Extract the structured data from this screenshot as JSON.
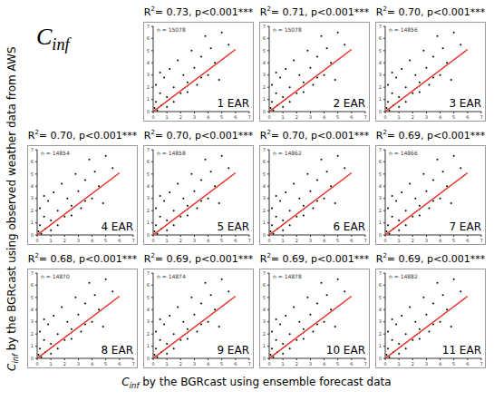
{
  "title": {
    "main": "C",
    "sub": "inf"
  },
  "x_label": {
    "main": "C",
    "sub": "inf",
    "rest": " by the BGRcast using ensemble forecast data"
  },
  "y_label": {
    "main": "C",
    "sub": "inf",
    "rest": " by the BGRcast using observed weather data from AWS"
  },
  "chart_data": [
    {
      "type": "scatter",
      "title": "1 EAR",
      "annotation": {
        "prefix": "R",
        "sup": "2",
        "text": "= 0.73,  p<0.001***"
      },
      "n_label": "n = 15078",
      "xlim": [
        0,
        7
      ],
      "ylim": [
        0,
        7
      ],
      "xticks": [
        0,
        1,
        2,
        3,
        4,
        5,
        6,
        7
      ],
      "yticks": [
        0,
        1,
        2,
        3,
        4,
        5,
        6,
        7
      ],
      "marker": "dot",
      "color": "#000000",
      "x": [
        0.1,
        0.2,
        0.3,
        0.5,
        0.2,
        0.6,
        0.8,
        1.0,
        1.2,
        1.0,
        1.5,
        1.8,
        2.0,
        2.2,
        2.5,
        2.8,
        3.0,
        3.2,
        3.5,
        3.8,
        4.0,
        4.2,
        4.5,
        5.0,
        5.5,
        1.5,
        2.5,
        3.5,
        0.5,
        4.8
      ],
      "values": [
        0.3,
        0.8,
        0.1,
        1.5,
        2.2,
        0.5,
        2.8,
        1.2,
        3.5,
        0.4,
        2.0,
        4.2,
        1.5,
        3.0,
        2.4,
        5.0,
        3.6,
        2.2,
        4.5,
        6.2,
        3.0,
        5.2,
        4.0,
        6.5,
        5.5,
        0.8,
        1.6,
        2.8,
        3.2,
        2.6
      ],
      "fit_line": {
        "x": [
          0,
          6
        ],
        "values": [
          0,
          5.1
        ],
        "color": "#e8302a"
      }
    },
    {
      "type": "scatter",
      "title": "2 EAR",
      "annotation": {
        "prefix": "R",
        "sup": "2",
        "text": "= 0.71,  p<0.001***"
      },
      "n_label": "n = 15078",
      "xlim": [
        0,
        7
      ],
      "ylim": [
        0,
        7
      ],
      "xticks": [
        0,
        1,
        2,
        3,
        4,
        5,
        6,
        7
      ],
      "yticks": [
        0,
        1,
        2,
        3,
        4,
        5,
        6,
        7
      ],
      "marker": "dot",
      "color": "#000000",
      "x": [
        0.1,
        0.2,
        0.3,
        0.5,
        0.2,
        0.6,
        0.8,
        1.0,
        1.2,
        1.0,
        1.5,
        1.8,
        2.0,
        2.2,
        2.5,
        2.8,
        3.0,
        3.2,
        3.5,
        3.8,
        4.0,
        4.2,
        4.5,
        5.0,
        5.5,
        1.5,
        2.5,
        3.5,
        0.5,
        4.8
      ],
      "values": [
        0.3,
        0.8,
        0.1,
        1.5,
        2.2,
        0.5,
        2.8,
        1.2,
        3.5,
        0.4,
        2.0,
        4.2,
        1.5,
        3.0,
        2.4,
        5.0,
        3.6,
        2.2,
        4.5,
        6.2,
        3.0,
        5.2,
        4.0,
        6.5,
        5.5,
        0.8,
        1.6,
        2.8,
        3.2,
        2.6
      ],
      "fit_line": {
        "x": [
          0,
          6
        ],
        "values": [
          0,
          5.1
        ],
        "color": "#e8302a"
      }
    },
    {
      "type": "scatter",
      "title": "3 EAR",
      "annotation": {
        "prefix": "R",
        "sup": "2",
        "text": "= 0.70,  p<0.001***"
      },
      "n_label": "n = 14856",
      "xlim": [
        0,
        7
      ],
      "ylim": [
        0,
        7
      ],
      "xticks": [
        0,
        1,
        2,
        3,
        4,
        5,
        6,
        7
      ],
      "yticks": [
        0,
        1,
        2,
        3,
        4,
        5,
        6,
        7
      ],
      "marker": "dot",
      "color": "#000000",
      "x": [
        0.1,
        0.2,
        0.3,
        0.5,
        0.2,
        0.6,
        0.8,
        1.0,
        1.2,
        1.0,
        1.5,
        1.8,
        2.0,
        2.2,
        2.5,
        2.8,
        3.0,
        3.2,
        3.5,
        3.8,
        4.0,
        4.2,
        4.5,
        5.0,
        5.5,
        1.5,
        2.5,
        3.5,
        0.5,
        4.8
      ],
      "values": [
        0.3,
        0.8,
        0.1,
        1.5,
        2.2,
        0.5,
        2.8,
        1.2,
        3.5,
        0.4,
        2.0,
        4.2,
        1.5,
        3.0,
        2.4,
        5.0,
        3.6,
        2.2,
        4.5,
        6.2,
        3.0,
        5.2,
        4.0,
        6.5,
        5.5,
        0.8,
        1.6,
        2.8,
        3.2,
        2.6
      ],
      "fit_line": {
        "x": [
          0,
          6
        ],
        "values": [
          0,
          5.1
        ],
        "color": "#e8302a"
      }
    },
    {
      "type": "scatter",
      "title": "4 EAR",
      "annotation": {
        "prefix": "R",
        "sup": "2",
        "text": "= 0.70,  p<0.001***"
      },
      "n_label": "n = 14854",
      "xlim": [
        0,
        7
      ],
      "ylim": [
        0,
        7
      ],
      "xticks": [
        0,
        1,
        2,
        3,
        4,
        5,
        6,
        7
      ],
      "yticks": [
        0,
        1,
        2,
        3,
        4,
        5,
        6,
        7
      ],
      "marker": "dot",
      "color": "#000000",
      "x": [
        0.1,
        0.2,
        0.3,
        0.5,
        0.2,
        0.6,
        0.8,
        1.0,
        1.2,
        1.0,
        1.5,
        1.8,
        2.0,
        2.2,
        2.5,
        2.8,
        3.0,
        3.2,
        3.5,
        3.8,
        4.0,
        4.2,
        4.5,
        5.0,
        5.5,
        1.5,
        2.5,
        3.5,
        0.5,
        4.8
      ],
      "values": [
        0.3,
        0.8,
        0.1,
        1.5,
        2.2,
        0.5,
        2.8,
        1.2,
        3.5,
        0.4,
        2.0,
        4.2,
        1.5,
        3.0,
        2.4,
        5.0,
        3.6,
        2.2,
        4.5,
        6.2,
        3.0,
        5.2,
        4.0,
        6.5,
        5.5,
        0.8,
        1.6,
        2.8,
        3.2,
        2.6
      ],
      "fit_line": {
        "x": [
          0,
          6
        ],
        "values": [
          0,
          5.1
        ],
        "color": "#e8302a"
      }
    },
    {
      "type": "scatter",
      "title": "5 EAR",
      "annotation": {
        "prefix": "R",
        "sup": "2",
        "text": "= 0.70,  p<0.001***"
      },
      "n_label": "n = 14858",
      "xlim": [
        0,
        7
      ],
      "ylim": [
        0,
        7
      ],
      "xticks": [
        0,
        1,
        2,
        3,
        4,
        5,
        6,
        7
      ],
      "yticks": [
        0,
        1,
        2,
        3,
        4,
        5,
        6,
        7
      ],
      "marker": "dot",
      "color": "#000000",
      "x": [
        0.1,
        0.2,
        0.3,
        0.5,
        0.2,
        0.6,
        0.8,
        1.0,
        1.2,
        1.0,
        1.5,
        1.8,
        2.0,
        2.2,
        2.5,
        2.8,
        3.0,
        3.2,
        3.5,
        3.8,
        4.0,
        4.2,
        4.5,
        5.0,
        5.5,
        1.5,
        2.5,
        3.5,
        0.5,
        4.8
      ],
      "values": [
        0.3,
        0.8,
        0.1,
        1.5,
        2.2,
        0.5,
        2.8,
        1.2,
        3.5,
        0.4,
        2.0,
        4.2,
        1.5,
        3.0,
        2.4,
        5.0,
        3.6,
        2.2,
        4.5,
        6.2,
        3.0,
        5.2,
        4.0,
        6.5,
        5.5,
        0.8,
        1.6,
        2.8,
        3.2,
        2.6
      ],
      "fit_line": {
        "x": [
          0,
          6
        ],
        "values": [
          0,
          5.1
        ],
        "color": "#e8302a"
      }
    },
    {
      "type": "scatter",
      "title": "6 EAR",
      "annotation": {
        "prefix": "R",
        "sup": "2",
        "text": "= 0.70,  p<0.001***"
      },
      "n_label": "n = 14862",
      "xlim": [
        0,
        7
      ],
      "ylim": [
        0,
        7
      ],
      "xticks": [
        0,
        1,
        2,
        3,
        4,
        5,
        6,
        7
      ],
      "yticks": [
        0,
        1,
        2,
        3,
        4,
        5,
        6,
        7
      ],
      "marker": "dot",
      "color": "#000000",
      "x": [
        0.1,
        0.2,
        0.3,
        0.5,
        0.2,
        0.6,
        0.8,
        1.0,
        1.2,
        1.0,
        1.5,
        1.8,
        2.0,
        2.2,
        2.5,
        2.8,
        3.0,
        3.2,
        3.5,
        3.8,
        4.0,
        4.2,
        4.5,
        5.0,
        5.5,
        1.5,
        2.5,
        3.5,
        0.5,
        4.8
      ],
      "values": [
        0.3,
        0.8,
        0.1,
        1.5,
        2.2,
        0.5,
        2.8,
        1.2,
        3.5,
        0.4,
        2.0,
        4.2,
        1.5,
        3.0,
        2.4,
        5.0,
        3.6,
        2.2,
        4.5,
        6.2,
        3.0,
        5.2,
        4.0,
        6.5,
        5.5,
        0.8,
        1.6,
        2.8,
        3.2,
        2.6
      ],
      "fit_line": {
        "x": [
          0,
          6
        ],
        "values": [
          0,
          5.1
        ],
        "color": "#e8302a"
      }
    },
    {
      "type": "scatter",
      "title": "7 EAR",
      "annotation": {
        "prefix": "R",
        "sup": "2",
        "text": "= 0.69,  p<0.001***"
      },
      "n_label": "n = 14866",
      "xlim": [
        0,
        7
      ],
      "ylim": [
        0,
        7
      ],
      "xticks": [
        0,
        1,
        2,
        3,
        4,
        5,
        6,
        7
      ],
      "yticks": [
        0,
        1,
        2,
        3,
        4,
        5,
        6,
        7
      ],
      "marker": "dot",
      "color": "#000000",
      "x": [
        0.1,
        0.2,
        0.3,
        0.5,
        0.2,
        0.6,
        0.8,
        1.0,
        1.2,
        1.0,
        1.5,
        1.8,
        2.0,
        2.2,
        2.5,
        2.8,
        3.0,
        3.2,
        3.5,
        3.8,
        4.0,
        4.2,
        4.5,
        5.0,
        5.5,
        1.5,
        2.5,
        3.5,
        0.5,
        4.8
      ],
      "values": [
        0.3,
        0.8,
        0.1,
        1.5,
        2.2,
        0.5,
        2.8,
        1.2,
        3.5,
        0.4,
        2.0,
        4.2,
        1.5,
        3.0,
        2.4,
        5.0,
        3.6,
        2.2,
        4.5,
        6.2,
        3.0,
        5.2,
        4.0,
        6.5,
        5.5,
        0.8,
        1.6,
        2.8,
        3.2,
        2.6
      ],
      "fit_line": {
        "x": [
          0,
          6
        ],
        "values": [
          0,
          5.1
        ],
        "color": "#e8302a"
      }
    },
    {
      "type": "scatter",
      "title": "8 EAR",
      "annotation": {
        "prefix": "R",
        "sup": "2",
        "text": "= 0.68,  p<0.001***"
      },
      "n_label": "n = 14870",
      "xlim": [
        0,
        7
      ],
      "ylim": [
        0,
        7
      ],
      "xticks": [
        0,
        1,
        2,
        3,
        4,
        5,
        6,
        7
      ],
      "yticks": [
        0,
        1,
        2,
        3,
        4,
        5,
        6,
        7
      ],
      "marker": "dot",
      "color": "#000000",
      "x": [
        0.1,
        0.2,
        0.3,
        0.5,
        0.2,
        0.6,
        0.8,
        1.0,
        1.2,
        1.0,
        1.5,
        1.8,
        2.0,
        2.2,
        2.5,
        2.8,
        3.0,
        3.2,
        3.5,
        3.8,
        4.0,
        4.2,
        4.5,
        5.0,
        5.5,
        1.5,
        2.5,
        3.5,
        0.5,
        4.8
      ],
      "values": [
        0.3,
        0.8,
        0.1,
        1.5,
        2.2,
        0.5,
        2.8,
        1.2,
        3.5,
        0.4,
        2.0,
        4.2,
        1.5,
        3.0,
        2.4,
        5.0,
        3.6,
        2.2,
        4.5,
        6.2,
        3.0,
        5.2,
        4.0,
        6.5,
        5.5,
        0.8,
        1.6,
        2.8,
        3.2,
        2.6
      ],
      "fit_line": {
        "x": [
          0,
          6
        ],
        "values": [
          0,
          5.1
        ],
        "color": "#e8302a"
      }
    },
    {
      "type": "scatter",
      "title": "9 EAR",
      "annotation": {
        "prefix": "R",
        "sup": "2",
        "text": "= 0.69,  p<0.001***"
      },
      "n_label": "n = 14874",
      "xlim": [
        0,
        7
      ],
      "ylim": [
        0,
        7
      ],
      "xticks": [
        0,
        1,
        2,
        3,
        4,
        5,
        6,
        7
      ],
      "yticks": [
        0,
        1,
        2,
        3,
        4,
        5,
        6,
        7
      ],
      "marker": "dot",
      "color": "#000000",
      "x": [
        0.1,
        0.2,
        0.3,
        0.5,
        0.2,
        0.6,
        0.8,
        1.0,
        1.2,
        1.0,
        1.5,
        1.8,
        2.0,
        2.2,
        2.5,
        2.8,
        3.0,
        3.2,
        3.5,
        3.8,
        4.0,
        4.2,
        4.5,
        5.0,
        5.5,
        1.5,
        2.5,
        3.5,
        0.5,
        4.8
      ],
      "values": [
        0.3,
        0.8,
        0.1,
        1.5,
        2.2,
        0.5,
        2.8,
        1.2,
        3.5,
        0.4,
        2.0,
        4.2,
        1.5,
        3.0,
        2.4,
        5.0,
        3.6,
        2.2,
        4.5,
        6.2,
        3.0,
        5.2,
        4.0,
        6.5,
        5.5,
        0.8,
        1.6,
        2.8,
        3.2,
        2.6
      ],
      "fit_line": {
        "x": [
          0,
          6
        ],
        "values": [
          0,
          5.1
        ],
        "color": "#e8302a"
      }
    },
    {
      "type": "scatter",
      "title": "10 EAR",
      "annotation": {
        "prefix": "R",
        "sup": "2",
        "text": "= 0.69,  p<0.001***"
      },
      "n_label": "n = 14878",
      "xlim": [
        0,
        7
      ],
      "ylim": [
        0,
        7
      ],
      "xticks": [
        0,
        1,
        2,
        3,
        4,
        5,
        6,
        7
      ],
      "yticks": [
        0,
        1,
        2,
        3,
        4,
        5,
        6,
        7
      ],
      "marker": "dot",
      "color": "#000000",
      "x": [
        0.1,
        0.2,
        0.3,
        0.5,
        0.2,
        0.6,
        0.8,
        1.0,
        1.2,
        1.0,
        1.5,
        1.8,
        2.0,
        2.2,
        2.5,
        2.8,
        3.0,
        3.2,
        3.5,
        3.8,
        4.0,
        4.2,
        4.5,
        5.0,
        5.5,
        1.5,
        2.5,
        3.5,
        0.5,
        4.8
      ],
      "values": [
        0.3,
        0.8,
        0.1,
        1.5,
        2.2,
        0.5,
        2.8,
        1.2,
        3.5,
        0.4,
        2.0,
        4.2,
        1.5,
        3.0,
        2.4,
        5.0,
        3.6,
        2.2,
        4.5,
        6.2,
        3.0,
        5.2,
        4.0,
        6.5,
        5.5,
        0.8,
        1.6,
        2.8,
        3.2,
        2.6
      ],
      "fit_line": {
        "x": [
          0,
          6
        ],
        "values": [
          0,
          5.1
        ],
        "color": "#e8302a"
      }
    },
    {
      "type": "scatter",
      "title": "11 EAR",
      "annotation": {
        "prefix": "R",
        "sup": "2",
        "text": "= 0.69,  p<0.001***"
      },
      "n_label": "n = 14882",
      "xlim": [
        0,
        7
      ],
      "ylim": [
        0,
        7
      ],
      "xticks": [
        0,
        1,
        2,
        3,
        4,
        5,
        6,
        7
      ],
      "yticks": [
        0,
        1,
        2,
        3,
        4,
        5,
        6,
        7
      ],
      "marker": "dot",
      "color": "#000000",
      "x": [
        0.1,
        0.2,
        0.3,
        0.5,
        0.2,
        0.6,
        0.8,
        1.0,
        1.2,
        1.0,
        1.5,
        1.8,
        2.0,
        2.2,
        2.5,
        2.8,
        3.0,
        3.2,
        3.5,
        3.8,
        4.0,
        4.2,
        4.5,
        5.0,
        5.5,
        1.5,
        2.5,
        3.5,
        0.5,
        4.8
      ],
      "values": [
        0.3,
        0.8,
        0.1,
        1.5,
        2.2,
        0.5,
        2.8,
        1.2,
        3.5,
        0.4,
        2.0,
        4.2,
        1.5,
        3.0,
        2.4,
        5.0,
        3.6,
        2.2,
        4.5,
        6.2,
        3.0,
        5.2,
        4.0,
        6.5,
        5.5,
        0.8,
        1.6,
        2.8,
        3.2,
        2.6
      ],
      "fit_line": {
        "x": [
          0,
          6
        ],
        "values": [
          0,
          5.1
        ],
        "color": "#e8302a"
      }
    }
  ]
}
